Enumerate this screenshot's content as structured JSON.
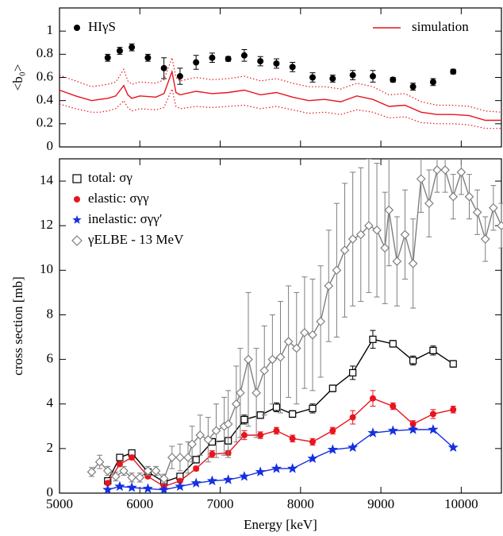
{
  "chart_data": [
    {
      "type": "scatter",
      "ylabel": "<b₀>",
      "xlim": [
        5000,
        10500
      ],
      "xticks": [
        5000,
        6000,
        7000,
        8000,
        9000,
        10000
      ],
      "xtick_labels": false,
      "ylim": [
        0,
        1.2
      ],
      "yticks": [
        0.0,
        0.2,
        0.4,
        0.6,
        0.8,
        1.0
      ],
      "series": [
        {
          "name": "HIγS",
          "color": "#000000",
          "marker": "circle",
          "filled": true,
          "line": "none",
          "legend_loc": "upper left",
          "x": [
            5600,
            5750,
            5900,
            6100,
            6300,
            6500,
            6700,
            6900,
            7100,
            7300,
            7500,
            7700,
            7900,
            8150,
            8400,
            8650,
            8900,
            9150,
            9400,
            9650,
            9900
          ],
          "values": [
            0.77,
            0.83,
            0.86,
            0.77,
            0.68,
            0.61,
            0.73,
            0.77,
            0.76,
            0.79,
            0.74,
            0.72,
            0.69,
            0.6,
            0.59,
            0.62,
            0.61,
            0.58,
            0.52,
            0.56,
            0.65
          ],
          "errors": [
            0.03,
            0.03,
            0.03,
            0.03,
            0.09,
            0.07,
            0.06,
            0.04,
            0.02,
            0.05,
            0.04,
            0.04,
            0.04,
            0.04,
            0.03,
            0.04,
            0.05,
            0.02,
            0.03,
            0.03,
            0.02
          ]
        },
        {
          "name": "simulation",
          "color": "#e8141e",
          "marker": "none",
          "line": "solid",
          "legend_loc": "upper right",
          "x": [
            5000,
            5200,
            5400,
            5500,
            5600,
            5700,
            5800,
            5850,
            5900,
            6000,
            6200,
            6300,
            6400,
            6450,
            6500,
            6700,
            6900,
            7100,
            7300,
            7500,
            7700,
            7900,
            8100,
            8300,
            8500,
            8700,
            8900,
            9100,
            9300,
            9500,
            9700,
            9900,
            10100,
            10300,
            10500
          ],
          "values": [
            0.49,
            0.44,
            0.4,
            0.41,
            0.42,
            0.44,
            0.53,
            0.45,
            0.42,
            0.44,
            0.43,
            0.46,
            0.65,
            0.47,
            0.45,
            0.48,
            0.46,
            0.47,
            0.49,
            0.45,
            0.47,
            0.43,
            0.4,
            0.41,
            0.39,
            0.44,
            0.41,
            0.35,
            0.36,
            0.3,
            0.28,
            0.28,
            0.27,
            0.23,
            0.23
          ]
        },
        {
          "color": "#e8141e",
          "marker": "none",
          "line": "dotted",
          "x": [
            5000,
            5200,
            5400,
            5500,
            5600,
            5700,
            5800,
            5850,
            5900,
            6000,
            6200,
            6300,
            6400,
            6450,
            6500,
            6700,
            6900,
            7100,
            7300,
            7500,
            7700,
            7900,
            8100,
            8300,
            8500,
            8700,
            8900,
            9100,
            9300,
            9500,
            9700,
            9900,
            10100,
            10300,
            10500
          ],
          "values": [
            0.62,
            0.57,
            0.52,
            0.53,
            0.54,
            0.56,
            0.67,
            0.57,
            0.54,
            0.56,
            0.55,
            0.58,
            0.77,
            0.6,
            0.57,
            0.6,
            0.58,
            0.59,
            0.61,
            0.57,
            0.59,
            0.55,
            0.52,
            0.52,
            0.5,
            0.55,
            0.52,
            0.45,
            0.46,
            0.39,
            0.36,
            0.36,
            0.35,
            0.31,
            0.3
          ]
        },
        {
          "color": "#e8141e",
          "marker": "none",
          "line": "dotted",
          "x": [
            5000,
            5200,
            5400,
            5500,
            5600,
            5700,
            5800,
            5850,
            5900,
            6000,
            6200,
            6300,
            6400,
            6450,
            6500,
            6700,
            6900,
            7100,
            7300,
            7500,
            7700,
            7900,
            8100,
            8300,
            8500,
            8700,
            8900,
            9100,
            9300,
            9500,
            9700,
            9900,
            10100,
            10300,
            10500
          ],
          "values": [
            0.37,
            0.33,
            0.3,
            0.3,
            0.31,
            0.33,
            0.4,
            0.34,
            0.31,
            0.33,
            0.32,
            0.34,
            0.5,
            0.35,
            0.33,
            0.35,
            0.34,
            0.35,
            0.36,
            0.33,
            0.35,
            0.32,
            0.29,
            0.3,
            0.28,
            0.32,
            0.3,
            0.25,
            0.26,
            0.21,
            0.2,
            0.2,
            0.19,
            0.16,
            0.16
          ]
        }
      ]
    },
    {
      "type": "scatter",
      "xlabel": "Energy [keV]",
      "ylabel": "cross section [mb]",
      "xlim": [
        5000,
        10500
      ],
      "xticks": [
        5000,
        6000,
        7000,
        8000,
        9000,
        10000
      ],
      "xtick_labels": true,
      "ylim": [
        0,
        15
      ],
      "yticks": [
        0,
        2,
        4,
        6,
        8,
        10,
        12,
        14
      ],
      "series": [
        {
          "name": "total: σγ",
          "color": "#000000",
          "marker": "square",
          "filled": false,
          "line": "solid",
          "legend_loc": "upper left",
          "x": [
            5600,
            5750,
            5900,
            6100,
            6300,
            6500,
            6700,
            6900,
            7100,
            7300,
            7500,
            7700,
            7900,
            8150,
            8400,
            8650,
            8900,
            9150,
            9400,
            9650,
            9900
          ],
          "values": [
            0.55,
            1.6,
            1.8,
            0.95,
            0.5,
            0.75,
            1.5,
            2.3,
            2.35,
            3.3,
            3.5,
            3.85,
            3.55,
            3.8,
            4.7,
            5.4,
            6.9,
            6.7,
            5.95,
            6.4,
            5.8
          ],
          "errors": [
            0.1,
            0.1,
            0.1,
            0.1,
            0.15,
            0.1,
            0.15,
            0.15,
            0.15,
            0.2,
            0.15,
            0.2,
            0.15,
            0.2,
            0.15,
            0.3,
            0.4,
            0.15,
            0.2,
            0.2,
            0.15
          ]
        },
        {
          "name": "elastic: σγγ",
          "color": "#e8141e",
          "marker": "circle",
          "filled": true,
          "line": "solid",
          "legend_loc": "upper left",
          "x": [
            5600,
            5750,
            5900,
            6100,
            6300,
            6500,
            6700,
            6900,
            7100,
            7300,
            7500,
            7700,
            7900,
            8150,
            8400,
            8650,
            8900,
            9150,
            9400,
            9650,
            9900
          ],
          "values": [
            0.45,
            1.3,
            1.6,
            0.75,
            0.3,
            0.55,
            1.1,
            1.75,
            1.8,
            2.6,
            2.6,
            2.8,
            2.45,
            2.3,
            2.8,
            3.4,
            4.25,
            3.9,
            3.1,
            3.55,
            3.75
          ],
          "errors": [
            0.08,
            0.1,
            0.1,
            0.08,
            0.1,
            0.08,
            0.1,
            0.15,
            0.1,
            0.2,
            0.15,
            0.15,
            0.15,
            0.15,
            0.15,
            0.3,
            0.35,
            0.15,
            0.15,
            0.2,
            0.15
          ]
        },
        {
          "name": "inelastic: σγγ′",
          "color": "#1430e0",
          "marker": "star",
          "filled": true,
          "line": "solid",
          "legend_loc": "upper left",
          "x": [
            5600,
            5750,
            5900,
            6100,
            6300,
            6500,
            6700,
            6900,
            7100,
            7300,
            7500,
            7700,
            7900,
            8150,
            8400,
            8650,
            8900,
            9150,
            9400,
            9650,
            9900
          ],
          "values": [
            0.15,
            0.3,
            0.25,
            0.2,
            0.15,
            0.3,
            0.45,
            0.55,
            0.6,
            0.75,
            0.95,
            1.1,
            1.1,
            1.55,
            1.95,
            2.05,
            2.7,
            2.8,
            2.85,
            2.85,
            2.05
          ]
        },
        {
          "name": "γELBE - 13 MeV",
          "color": "#7f7f7f",
          "marker": "diamond",
          "filled": false,
          "line": "solid",
          "legend_loc": "upper left",
          "x": [
            5400,
            5500,
            5600,
            5700,
            5800,
            5900,
            6000,
            6100,
            6200,
            6300,
            6400,
            6500,
            6600,
            6650,
            6750,
            6850,
            6950,
            7050,
            7100,
            7200,
            7250,
            7350,
            7450,
            7550,
            7650,
            7750,
            7850,
            7950,
            8050,
            8150,
            8250,
            8350,
            8450,
            8550,
            8650,
            8750,
            8850,
            8950,
            9050,
            9100,
            9200,
            9300,
            9400,
            9500,
            9600,
            9700,
            9800,
            9900,
            10000,
            10100,
            10200,
            10300,
            10400,
            10500
          ],
          "values": [
            0.95,
            1.4,
            1.0,
            0.75,
            1.0,
            0.7,
            0.7,
            1.0,
            1.0,
            0.65,
            1.6,
            1.6,
            1.6,
            2.2,
            2.6,
            2.4,
            2.8,
            3.0,
            3.1,
            4.0,
            4.5,
            6.0,
            4.5,
            5.5,
            6.0,
            6.1,
            6.8,
            6.5,
            7.2,
            7.1,
            7.7,
            9.3,
            10.0,
            10.9,
            11.4,
            11.6,
            12.0,
            11.8,
            11.0,
            12.7,
            10.4,
            11.6,
            10.3,
            14.1,
            13.0,
            14.5,
            14.5,
            13.3,
            14.4,
            13.3,
            12.6,
            11.4,
            12.8,
            12.0
          ],
          "errors": [
            0.2,
            0.3,
            0.2,
            0.2,
            0.2,
            0.2,
            0.2,
            0.2,
            0.2,
            0.2,
            0.5,
            0.6,
            0.7,
            0.8,
            0.9,
            1.0,
            1.2,
            1.3,
            1.5,
            1.7,
            2.0,
            3.0,
            2.0,
            2.0,
            2.0,
            2.5,
            2.5,
            2.5,
            2.5,
            2.5,
            2.5,
            2.5,
            3.0,
            3.0,
            3.0,
            3.0,
            3.0,
            3.0,
            2.5,
            2.5,
            2.0,
            2.0,
            2.0,
            1.5,
            1.5,
            1.0,
            1.0,
            1.0,
            1.0,
            1.0,
            1.0,
            1.0,
            1.0,
            1.0
          ]
        }
      ]
    }
  ]
}
